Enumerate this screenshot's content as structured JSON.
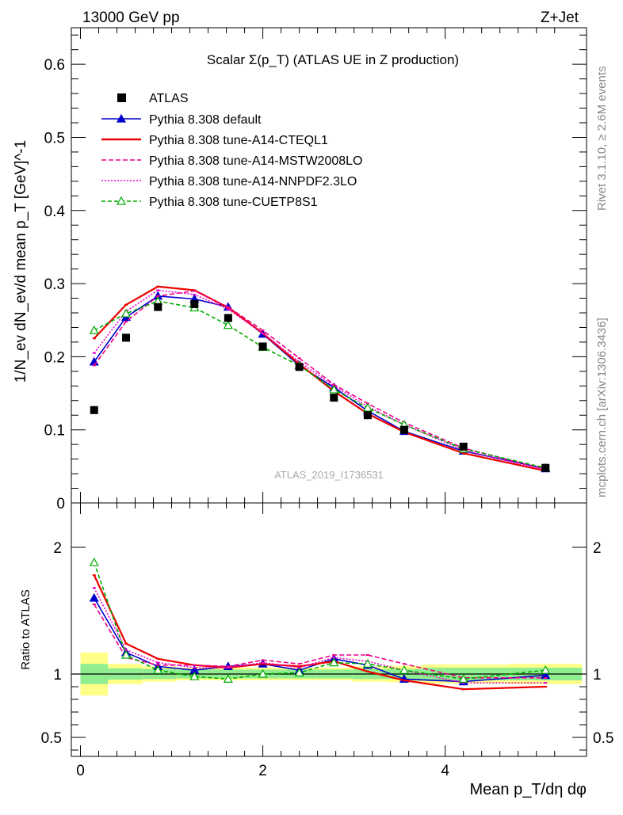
{
  "header": {
    "left": "13000 GeV pp",
    "right": "Z+Jet"
  },
  "side_text": {
    "rivet": "Rivet 3.1.10, ≥ 2.6M events",
    "mcplots": "mcplots.cern.ch [arXiv:1306.3436]"
  },
  "chart_data": [
    {
      "type": "line",
      "title": "Scalar Σ(p_T) (ATLAS UE in Z production)",
      "ylabel": "1/N_ev dN_ev/d mean p_T [GeV]^-1",
      "xlabel": "Mean p_T/dη dφ",
      "watermark": "ATLAS_2019_I1736531",
      "xlim": [
        -0.1,
        5.55
      ],
      "ylim": [
        0,
        0.65
      ],
      "y_ticks": [
        "0",
        "0.1",
        "0.2",
        "0.3",
        "0.4",
        "0.5",
        "0.6"
      ],
      "x_ticks": [
        "0",
        "2",
        "4"
      ],
      "legend_position": "top-left",
      "x": [
        0.15,
        0.5,
        0.85,
        1.25,
        1.62,
        2.0,
        2.4,
        2.78,
        3.15,
        3.55,
        4.2,
        5.1
      ],
      "data": {
        "name": "ATLAS",
        "values": [
          0.127,
          0.226,
          0.268,
          0.272,
          0.253,
          0.214,
          0.186,
          0.144,
          0.12,
          0.1,
          0.077,
          0.048
        ]
      },
      "series": [
        {
          "name": "Pythia 8.308 default",
          "color": "#0000cc",
          "dash": "",
          "marker": "triangle-filled",
          "values": [
            0.193,
            0.254,
            0.283,
            0.279,
            0.268,
            0.231,
            0.188,
            0.158,
            0.126,
            0.098,
            0.071,
            0.047
          ]
        },
        {
          "name": "Pythia 8.308 tune-A14-CTEQL1",
          "color": "#ee0000",
          "dash": "",
          "marker": "",
          "values": [
            0.225,
            0.271,
            0.296,
            0.291,
            0.267,
            0.232,
            0.19,
            0.153,
            0.122,
            0.097,
            0.068,
            0.044
          ]
        },
        {
          "name": "Pythia 8.308 tune-A14-MSTW2008LO",
          "color": "#ee0088",
          "dash": "6,3",
          "marker": "",
          "values": [
            0.188,
            0.248,
            0.283,
            0.29,
            0.268,
            0.236,
            0.198,
            0.162,
            0.136,
            0.11,
            0.075,
            0.046
          ]
        },
        {
          "name": "Pythia 8.308 tune-A14-NNPDF2.3LO",
          "color": "#ee00cc",
          "dash": "2,2",
          "marker": "",
          "values": [
            0.205,
            0.262,
            0.291,
            0.285,
            0.265,
            0.232,
            0.193,
            0.16,
            0.132,
            0.107,
            0.072,
            0.045
          ]
        },
        {
          "name": "Pythia 8.308 tune-CUETP8S1",
          "color": "#00aa00",
          "dash": "5,3",
          "marker": "triangle-open",
          "values": [
            0.236,
            0.259,
            0.276,
            0.267,
            0.243,
            0.213,
            0.188,
            0.155,
            0.13,
            0.107,
            0.074,
            0.048
          ]
        }
      ]
    },
    {
      "type": "line",
      "ylabel": "Ratio to ATLAS",
      "xlabel": "Mean p_T/dη dφ",
      "xlim": [
        -0.1,
        5.55
      ],
      "ylim": [
        0.35,
        2.35
      ],
      "y_ticks": [
        "0.5",
        "1",
        "2"
      ],
      "x_ticks": [
        "0",
        "2",
        "4"
      ],
      "x": [
        0.15,
        0.5,
        0.85,
        1.25,
        1.62,
        2.0,
        2.4,
        2.78,
        3.15,
        3.55,
        4.2,
        5.1
      ],
      "bands": {
        "bin_edges": [
          0.0,
          0.3,
          0.68,
          1.05,
          1.45,
          1.8,
          2.2,
          2.58,
          2.98,
          3.35,
          3.75,
          4.7,
          5.5
        ],
        "inner_half_width": [
          0.08,
          0.045,
          0.04,
          0.035,
          0.035,
          0.035,
          0.035,
          0.035,
          0.04,
          0.04,
          0.05,
          0.05
        ],
        "outer_half_width": [
          0.17,
          0.08,
          0.06,
          0.05,
          0.05,
          0.05,
          0.05,
          0.05,
          0.06,
          0.065,
          0.075,
          0.08
        ],
        "inner_color": "#90ee90",
        "outer_color": "#ffff88"
      },
      "series": [
        {
          "name": "Pythia 8.308 default",
          "values": [
            1.6,
            1.17,
            1.06,
            1.03,
            1.06,
            1.08,
            1.03,
            1.12,
            1.07,
            0.96,
            0.94,
            0.99
          ]
        },
        {
          "name": "Pythia 8.308 tune-A14-CTEQL1",
          "values": [
            1.78,
            1.24,
            1.12,
            1.07,
            1.05,
            1.08,
            1.06,
            1.1,
            1.02,
            0.95,
            0.88,
            0.9
          ]
        },
        {
          "name": "Pythia 8.308 tune-A14-MSTW2008LO",
          "values": [
            1.55,
            1.13,
            1.07,
            1.07,
            1.06,
            1.11,
            1.08,
            1.15,
            1.15,
            1.08,
            0.97,
            0.97
          ]
        },
        {
          "name": "Pythia 8.308 tune-A14-NNPDF2.3LO",
          "values": [
            1.68,
            1.19,
            1.09,
            1.05,
            1.05,
            1.09,
            1.05,
            1.13,
            1.1,
            1.03,
            0.93,
            0.93
          ]
        },
        {
          "name": "Pythia 8.308 tune-CUETP8S1",
          "values": [
            1.88,
            1.15,
            1.03,
            0.98,
            0.96,
            1.0,
            1.01,
            1.09,
            1.08,
            1.03,
            0.96,
            1.03
          ]
        }
      ]
    }
  ]
}
